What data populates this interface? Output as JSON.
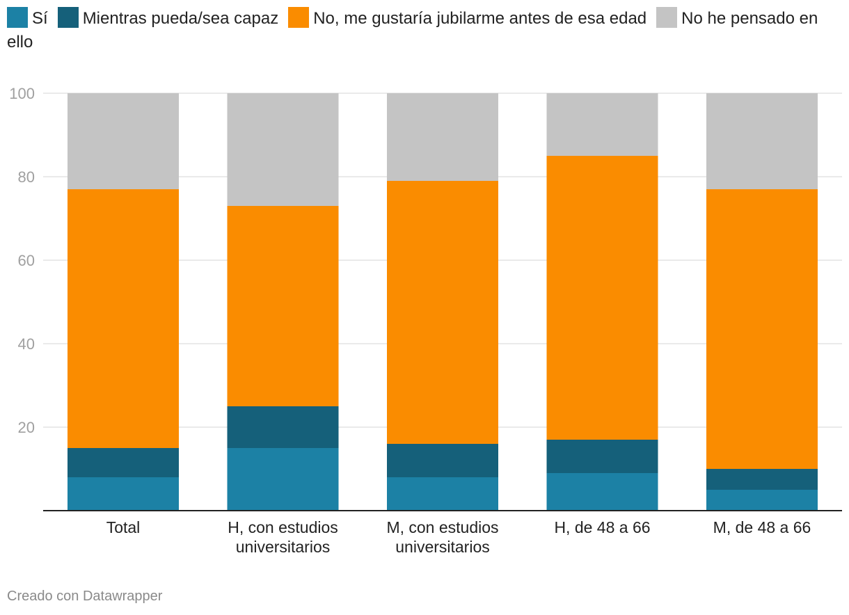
{
  "chart_data": {
    "type": "bar",
    "stacked": true,
    "categories": [
      "Total",
      "H, con estudios universitarios",
      "M, con estudios universitarios",
      "H, de 48 a 66",
      "M, de 48 a 66"
    ],
    "category_lines": [
      [
        "Total"
      ],
      [
        "H, con estudios",
        "universitarios"
      ],
      [
        "M, con estudios",
        "universitarios"
      ],
      [
        "H, de 48 a 66"
      ],
      [
        "M, de 48 a 66"
      ]
    ],
    "series": [
      {
        "name": "Sí",
        "color": "#1c81a5",
        "values": [
          8,
          15,
          8,
          9,
          5
        ]
      },
      {
        "name": "Mientras pueda/sea capaz",
        "color": "#15607a",
        "values": [
          7,
          10,
          8,
          8,
          5
        ]
      },
      {
        "name": "No, me gustaría jubilarme antes de esa edad",
        "color": "#fa8c00",
        "values": [
          62,
          48,
          63,
          68,
          67
        ]
      },
      {
        "name": "No he pensado en ello",
        "color": "#c4c4c4",
        "values": [
          23,
          27,
          21,
          15,
          23
        ]
      }
    ],
    "ylim": [
      0,
      100
    ],
    "yticks": [
      20,
      40,
      60,
      80,
      100
    ],
    "title": "",
    "xlabel": "",
    "ylabel": ""
  },
  "footer": {
    "credit": "Creado con Datawrapper"
  }
}
